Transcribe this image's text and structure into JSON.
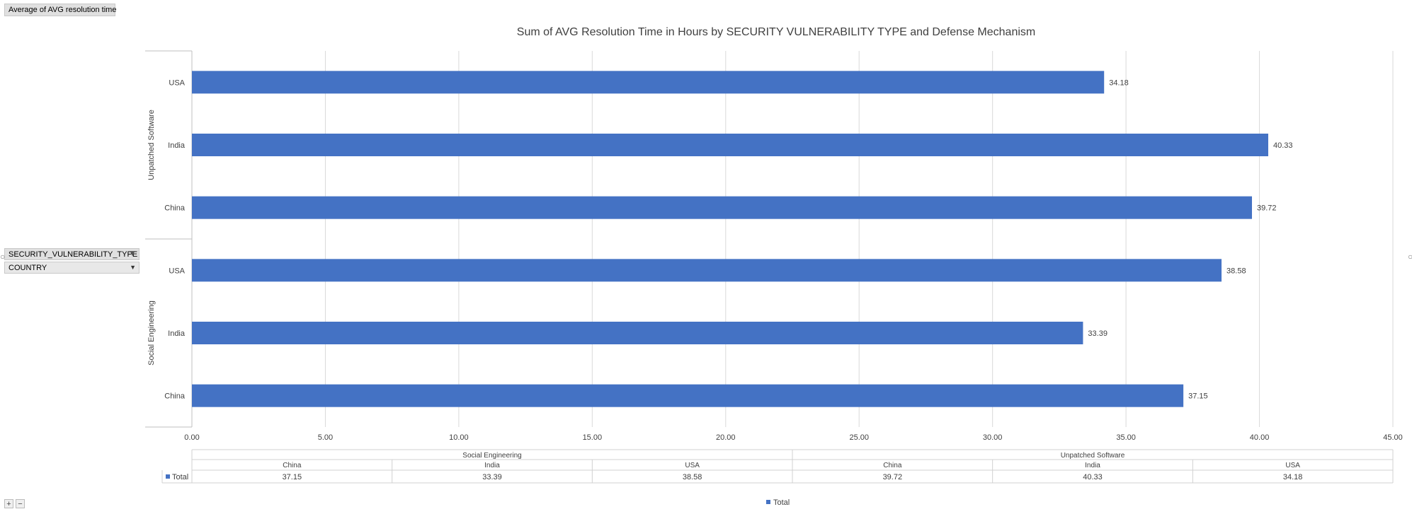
{
  "field_buttons": {
    "measure": "Average of AVG resolution time",
    "row_field_1": "SECURITY_VULNERABILITY_TYPE",
    "row_field_2": "COUNTRY"
  },
  "zoom": {
    "in_label": "+",
    "out_label": "−"
  },
  "colors": {
    "bar": "#4472C4",
    "grid": "#d9d9d9",
    "axis": "#bfbfbf",
    "text": "#404040"
  },
  "chart_data": {
    "type": "bar",
    "orientation": "horizontal",
    "title": "Sum of AVG Resolution Time in Hours by SECURITY VULNERABILITY TYPE and Defense Mechanism",
    "groups": [
      {
        "name": "Social Engineering",
        "categories": [
          "China",
          "India",
          "USA"
        ],
        "values": [
          37.15,
          33.39,
          38.58
        ]
      },
      {
        "name": "Unpatched Software",
        "categories": [
          "China",
          "India",
          "USA"
        ],
        "values": [
          39.72,
          40.33,
          34.18
        ]
      }
    ],
    "xlim": [
      0,
      45
    ],
    "xticks": [
      "0.00",
      "5.00",
      "10.00",
      "15.00",
      "20.00",
      "25.00",
      "30.00",
      "35.00",
      "40.00",
      "45.00"
    ],
    "data_labels": true,
    "grid": true,
    "series": [
      {
        "name": "Total"
      }
    ],
    "legend_position": "bottom",
    "data_table": {
      "row_label": "Total",
      "cells": [
        "37.15",
        "33.39",
        "38.58",
        "39.72",
        "40.33",
        "34.18"
      ]
    }
  }
}
